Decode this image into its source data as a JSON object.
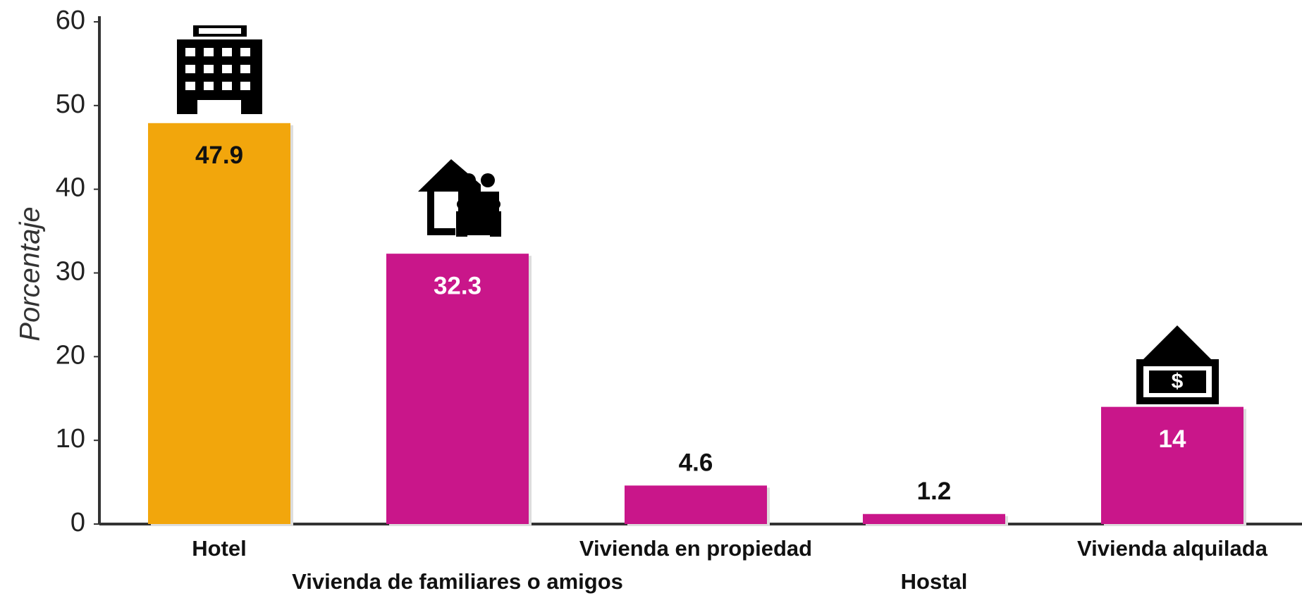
{
  "chart_data": {
    "type": "bar",
    "y_label": "Porcentaje",
    "categories": [
      "Hotel",
      "Vivienda de familiares o amigos",
      "Vivienda en propiedad",
      "Hostal",
      "Vivienda alquilada"
    ],
    "values": [
      47.9,
      32.3,
      4.6,
      1.2,
      14
    ],
    "colors": [
      "#f2a60c",
      "#c9168a",
      "#c9168a",
      "#c9168a",
      "#c9168a"
    ],
    "ylim": [
      0,
      60
    ],
    "yticks": [
      0,
      10,
      20,
      30,
      40,
      50,
      60
    ],
    "grid": false
  }
}
